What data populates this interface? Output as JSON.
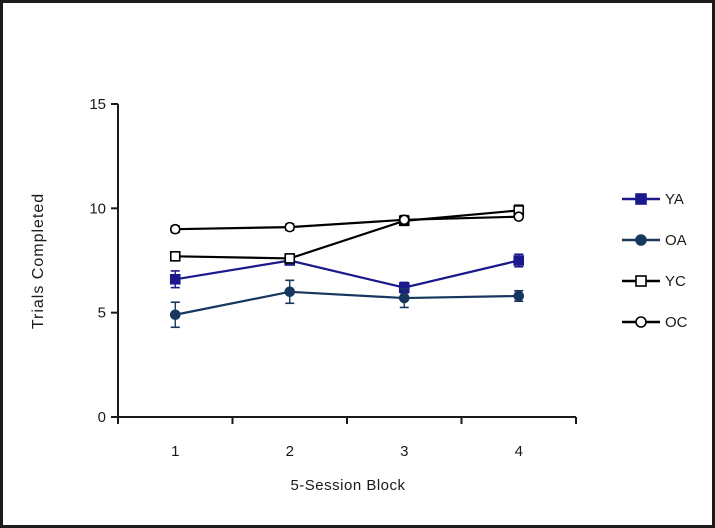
{
  "figure": {
    "background": "#ffffff",
    "border_color": "#1b1b1b",
    "axis_color": "#1a1a1a"
  },
  "chart_data": {
    "type": "line",
    "title": "",
    "xlabel": "5-Session Block",
    "ylabel": "Trials Completed",
    "x": [
      "1",
      "2",
      "3",
      "4"
    ],
    "yticks": [
      0,
      5,
      10,
      15
    ],
    "ylim": [
      0,
      15
    ],
    "grid": false,
    "legend_position": "right",
    "error_bars": true,
    "series": [
      {
        "name": "YA",
        "marker": "square",
        "fill": "filled",
        "color": "#1A1A8C",
        "values": [
          6.6,
          7.5,
          6.2,
          7.5
        ],
        "errors": [
          0.4,
          0.2,
          0.25,
          0.3
        ]
      },
      {
        "name": "OA",
        "marker": "circle",
        "fill": "filled",
        "color": "#17375E",
        "values": [
          4.9,
          6.0,
          5.7,
          5.8
        ],
        "errors": [
          0.6,
          0.55,
          0.45,
          0.25
        ]
      },
      {
        "name": "YC",
        "marker": "square",
        "fill": "open",
        "color": "#000000",
        "values": [
          7.7,
          7.6,
          9.4,
          9.9
        ],
        "errors": [
          0.2,
          0.2,
          0.2,
          0.25
        ]
      },
      {
        "name": "OC",
        "marker": "circle",
        "fill": "open",
        "color": "#000000",
        "values": [
          9.0,
          9.1,
          9.45,
          9.6
        ],
        "errors": [
          0.15,
          0.15,
          0.2,
          0.1
        ]
      }
    ]
  }
}
